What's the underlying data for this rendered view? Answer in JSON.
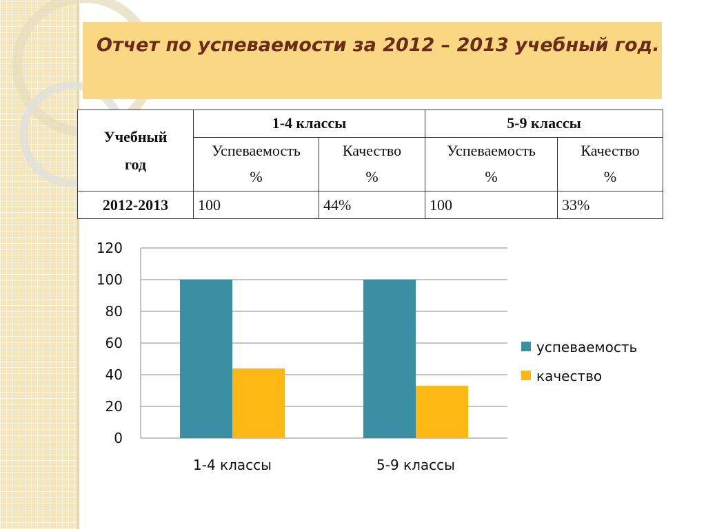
{
  "slide_title": "Отчет по успеваемости за 2012 – 2013 учебный год.",
  "table": {
    "year_header_line1": "Учебный",
    "year_header_line2": "год",
    "groups": [
      "1-4 классы",
      "5-9 классы"
    ],
    "sub_headers": [
      {
        "line1": "Успеваемость",
        "line2": "%"
      },
      {
        "line1": "Качество",
        "line2": "%"
      },
      {
        "line1": "Успеваемость",
        "line2": "%"
      },
      {
        "line1": "Качество",
        "line2": "%"
      }
    ],
    "rows": [
      {
        "year": "2012-2013",
        "cells": [
          "100",
          "44%",
          "100",
          "33%"
        ]
      }
    ]
  },
  "colors": {
    "series1": "#3a8fa3",
    "series2": "#fdb813",
    "title_bg": "#fad782",
    "title_text": "#6a2c1a",
    "gridline": "#8a8a8a"
  },
  "chart_data": {
    "type": "bar",
    "categories": [
      "1-4 классы",
      "5-9 классы"
    ],
    "series": [
      {
        "name": "успеваемость",
        "values": [
          100,
          100
        ]
      },
      {
        "name": "качество",
        "values": [
          44,
          33
        ]
      }
    ],
    "ylim": [
      0,
      120
    ],
    "yticks": [
      "0",
      "20",
      "40",
      "60",
      "80",
      "100",
      "120"
    ],
    "grid": true,
    "legend_position": "right"
  }
}
